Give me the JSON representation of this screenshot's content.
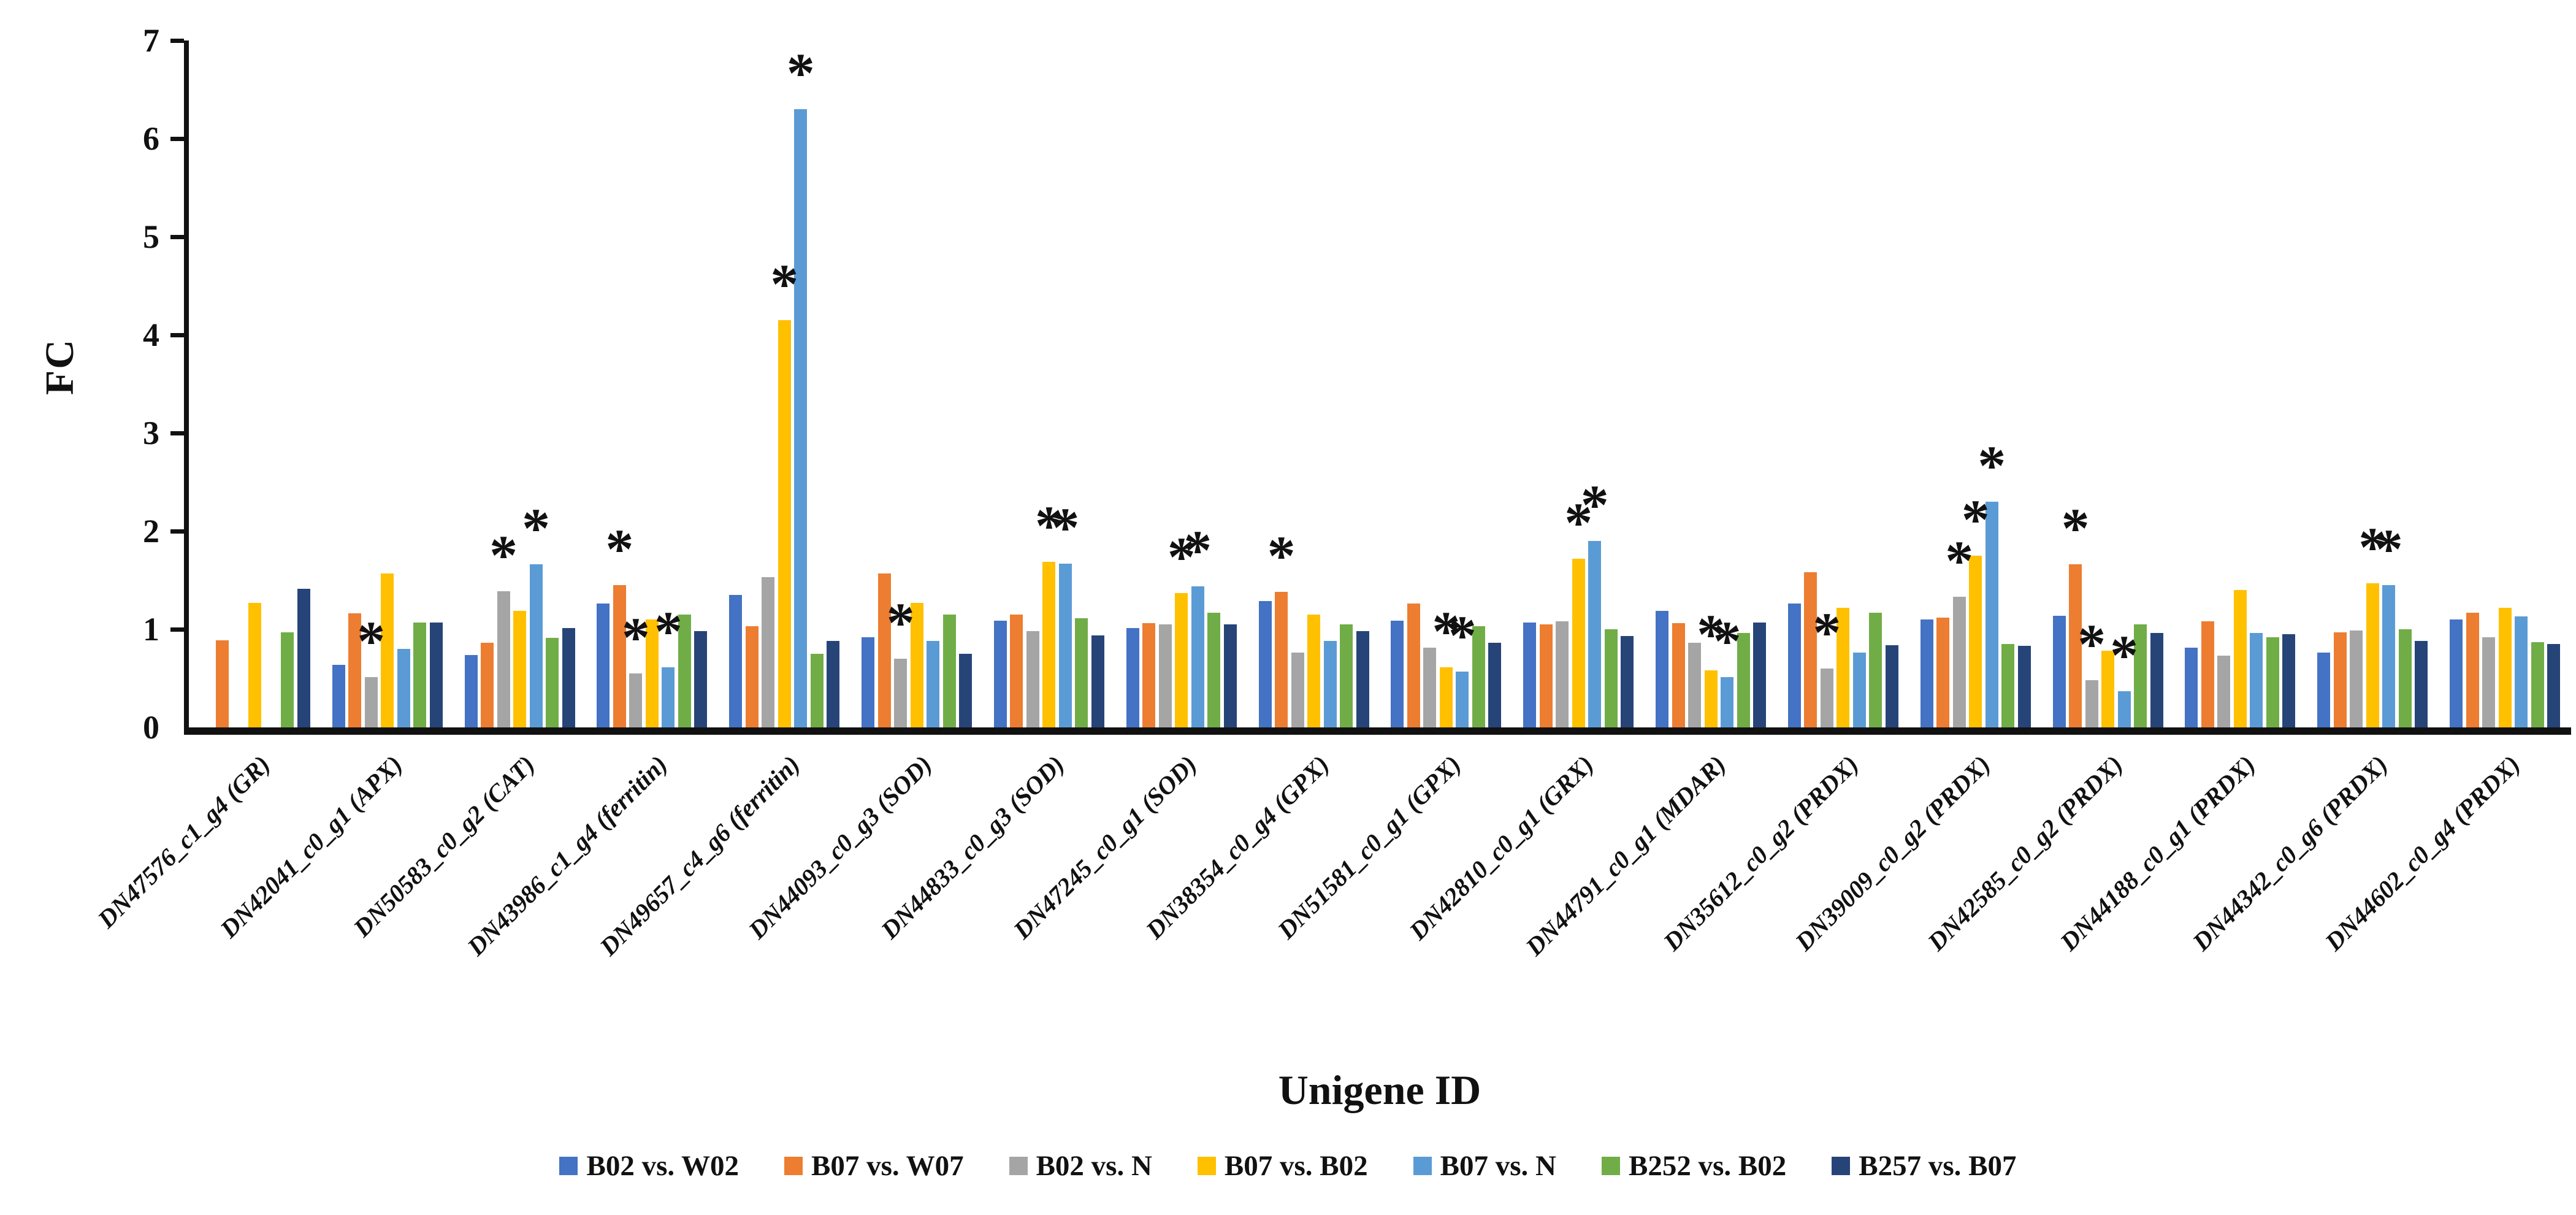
{
  "y_axis": {
    "label": "FC",
    "ticks": [
      "0",
      "1",
      "2",
      "3",
      "4",
      "5",
      "6",
      "7"
    ],
    "max": 7
  },
  "x_axis": {
    "label": "Unigene ID"
  },
  "significance_marker": "*",
  "colors": {
    "blue": "#4472C4",
    "orange": "#ED7D31",
    "gray": "#A5A5A5",
    "gold": "#FFC000",
    "light_blue": "#5B9BD5",
    "green": "#70AD47",
    "navy": "#264478"
  },
  "legend": [
    {
      "label": "B02 vs. W02",
      "color": "#4472C4"
    },
    {
      "label": "B07 vs. W07",
      "color": "#ED7D31"
    },
    {
      "label": "B02 vs. N",
      "color": "#A5A5A5"
    },
    {
      "label": "B07 vs. B02",
      "color": "#FFC000"
    },
    {
      "label": "B07 vs. N",
      "color": "#5B9BD5"
    },
    {
      "label": "B252 vs. B02",
      "color": "#70AD47"
    },
    {
      "label": "B257 vs. B07",
      "color": "#264478"
    }
  ],
  "chart_data": {
    "type": "bar",
    "title": "",
    "xlabel": "Unigene ID",
    "ylabel": "FC",
    "ylim": [
      0,
      7
    ],
    "grid": false,
    "legend_position": "bottom",
    "categories": [
      "DN47576_c1_g4 (GR)",
      "DN42041_c0_g1 (APX)",
      "DN50583_c0_g2 (CAT)",
      "DN43986_c1_g4 (ferritin)",
      "DN49657_c4_g6 (ferritin)",
      "DN44093_c0_g3 (SOD)",
      "DN44833_c0_g3 (SOD)",
      "DN47245_c0_g1 (SOD)",
      "DN38354_c0_g4 (GPX)",
      "DN51581_c0_g1 (GPX)",
      "DN42810_c0_g1 (GRX)",
      "DN44791_c0_g1 (MDAR)",
      "DN35612_c0_g2 (PRDX)",
      "DN39009_c0_g2 (PRDX)",
      "DN42585_c0_g2 (PRDX)",
      "DN44188_c0_g1 (PRDX)",
      "DN44342_c0_g6 (PRDX)",
      "DN44602_c0_g4 (PRDX)"
    ],
    "series": [
      {
        "name": "B02 vs. W02",
        "color": "#4472C4",
        "values": [
          0,
          0.64,
          0.74,
          1.26,
          1.35,
          0.92,
          1.09,
          1.01,
          1.29,
          1.09,
          1.07,
          1.19,
          1.26,
          1.1,
          1.14,
          0.81,
          0.76,
          1.1
        ]
      },
      {
        "name": "B07 vs. W07",
        "color": "#ED7D31",
        "values": [
          0.89,
          1.16,
          0.86,
          1.45,
          1.03,
          1.57,
          1.15,
          1.06,
          1.38,
          1.26,
          1.05,
          1.06,
          1.58,
          1.12,
          1.66,
          1.08,
          0.97,
          1.17
        ]
      },
      {
        "name": "B02 vs. N",
        "color": "#A5A5A5",
        "values": [
          0,
          0.51,
          1.39,
          0.55,
          1.53,
          0.7,
          0.98,
          1.05,
          0.76,
          0.81,
          1.08,
          0.86,
          0.6,
          1.33,
          0.48,
          0.73,
          0.99,
          0.92
        ]
      },
      {
        "name": "B07 vs. B02",
        "color": "#FFC000",
        "values": [
          1.27,
          1.57,
          1.19,
          1.1,
          4.15,
          1.27,
          1.69,
          1.37,
          1.15,
          0.61,
          1.72,
          0.58,
          1.22,
          1.75,
          0.78,
          1.4,
          1.47,
          1.22
        ]
      },
      {
        "name": "B07 vs. N",
        "color": "#5B9BD5",
        "values": [
          0,
          0.8,
          1.66,
          0.61,
          6.3,
          0.88,
          1.67,
          1.44,
          0.88,
          0.57,
          1.9,
          0.51,
          0.76,
          2.3,
          0.37,
          0.96,
          1.45,
          1.13
        ]
      },
      {
        "name": "B252 vs. B02",
        "color": "#70AD47",
        "values": [
          0.97,
          1.07,
          0.91,
          1.15,
          0.75,
          1.15,
          1.11,
          1.17,
          1.05,
          1.03,
          1.0,
          0.96,
          1.17,
          0.85,
          1.05,
          0.92,
          1.0,
          0.87
        ]
      },
      {
        "name": "B257 vs. B07",
        "color": "#264478",
        "values": [
          1.41,
          1.07,
          1.01,
          0.98,
          0.88,
          0.75,
          0.94,
          1.05,
          0.98,
          0.86,
          0.93,
          1.07,
          0.84,
          0.83,
          0.96,
          0.95,
          0.88,
          0.85
        ]
      }
    ],
    "significance_stars": [
      [
        1,
        2
      ],
      [
        2,
        2
      ],
      [
        2,
        4
      ],
      [
        3,
        1
      ],
      [
        3,
        2
      ],
      [
        3,
        4
      ],
      [
        4,
        3
      ],
      [
        4,
        4
      ],
      [
        5,
        2
      ],
      [
        6,
        3
      ],
      [
        6,
        4
      ],
      [
        7,
        3
      ],
      [
        7,
        4
      ],
      [
        8,
        1
      ],
      [
        9,
        3
      ],
      [
        9,
        4
      ],
      [
        10,
        3
      ],
      [
        10,
        4
      ],
      [
        11,
        3
      ],
      [
        11,
        4
      ],
      [
        12,
        2
      ],
      [
        13,
        2
      ],
      [
        13,
        3
      ],
      [
        13,
        4
      ],
      [
        14,
        1
      ],
      [
        14,
        2
      ],
      [
        14,
        4
      ],
      [
        16,
        3
      ],
      [
        16,
        4
      ]
    ]
  }
}
